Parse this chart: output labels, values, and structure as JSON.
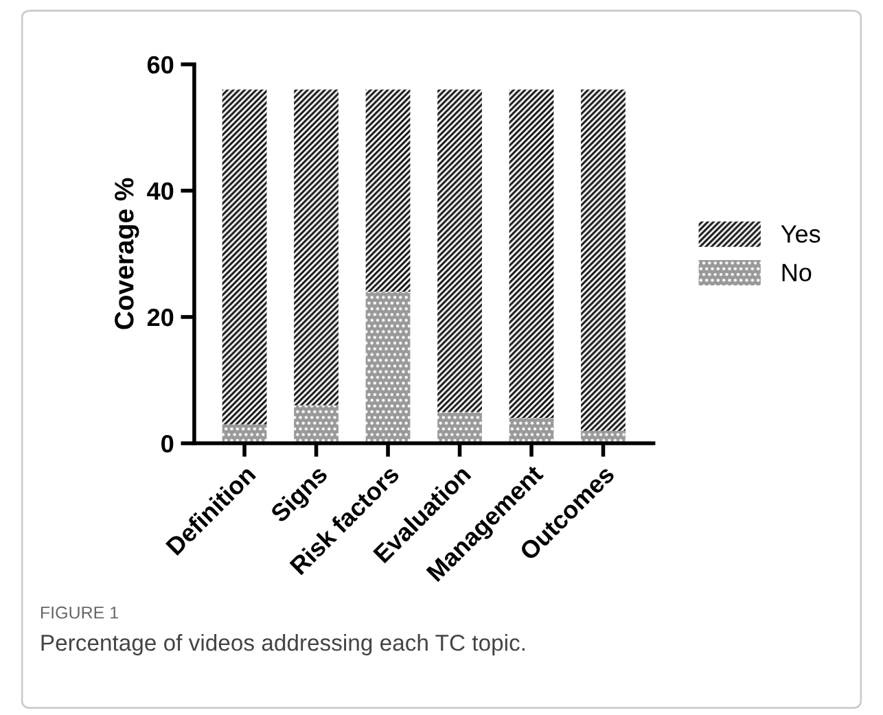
{
  "chart_data": {
    "type": "bar",
    "stacked": true,
    "ylabel": "Coverage %",
    "categories": [
      "Definition",
      "Signs",
      "Risk factors",
      "Evaluation",
      "Management",
      "Outcomes"
    ],
    "series": [
      {
        "name": "No",
        "color": "#999999",
        "values": [
          3,
          6,
          24,
          5,
          4,
          2
        ]
      },
      {
        "name": "Yes",
        "color": "#1a1a1a",
        "values": [
          53,
          50,
          32,
          51,
          52,
          54
        ]
      }
    ],
    "ylim": [
      0,
      60
    ],
    "yticks": [
      0,
      20,
      40,
      60
    ],
    "grid": false,
    "legend": "right",
    "annotations": [
      "FIGURE 1",
      "Percentage of videos addressing each TC topic."
    ]
  }
}
